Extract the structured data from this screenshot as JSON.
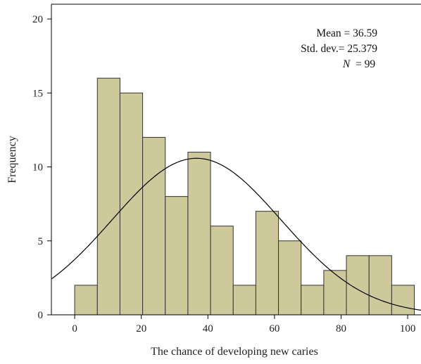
{
  "chart_data": {
    "type": "bar",
    "subtype": "histogram",
    "xlabel": "The chance of developing new caries",
    "ylabel": "Frequency",
    "xlim": [
      -7,
      104
    ],
    "ylim": [
      0,
      21
    ],
    "xticks": [
      0,
      20,
      40,
      60,
      80,
      100
    ],
    "yticks": [
      0,
      5,
      10,
      15,
      20
    ],
    "bins": [
      {
        "start": 0,
        "end": 6.8,
        "value": 2
      },
      {
        "start": 6.8,
        "end": 13.6,
        "value": 16
      },
      {
        "start": 13.6,
        "end": 20.4,
        "value": 15
      },
      {
        "start": 20.4,
        "end": 27.2,
        "value": 12
      },
      {
        "start": 27.2,
        "end": 34.0,
        "value": 8
      },
      {
        "start": 34.0,
        "end": 40.8,
        "value": 11
      },
      {
        "start": 40.8,
        "end": 47.6,
        "value": 6
      },
      {
        "start": 47.6,
        "end": 54.4,
        "value": 2
      },
      {
        "start": 54.4,
        "end": 61.2,
        "value": 7
      },
      {
        "start": 61.2,
        "end": 68.0,
        "value": 5
      },
      {
        "start": 68.0,
        "end": 74.8,
        "value": 2
      },
      {
        "start": 74.8,
        "end": 81.6,
        "value": 3
      },
      {
        "start": 81.6,
        "end": 88.4,
        "value": 4
      },
      {
        "start": 88.4,
        "end": 95.2,
        "value": 4
      },
      {
        "start": 95.2,
        "end": 102.0,
        "value": 2
      }
    ],
    "normal_curve": {
      "mean": 36.59,
      "std_dev": 25.379,
      "n": 99,
      "bin_width": 6.8
    },
    "stats": {
      "mean_line": "Mean = 36.59",
      "std_line": "Std. dev.= 25.379",
      "n_label": "N",
      "n_value": "= 99"
    },
    "colors": {
      "bar_fill": "#cdc99a",
      "bar_stroke": "#333333",
      "curve": "#000000",
      "axis": "#000000"
    }
  }
}
